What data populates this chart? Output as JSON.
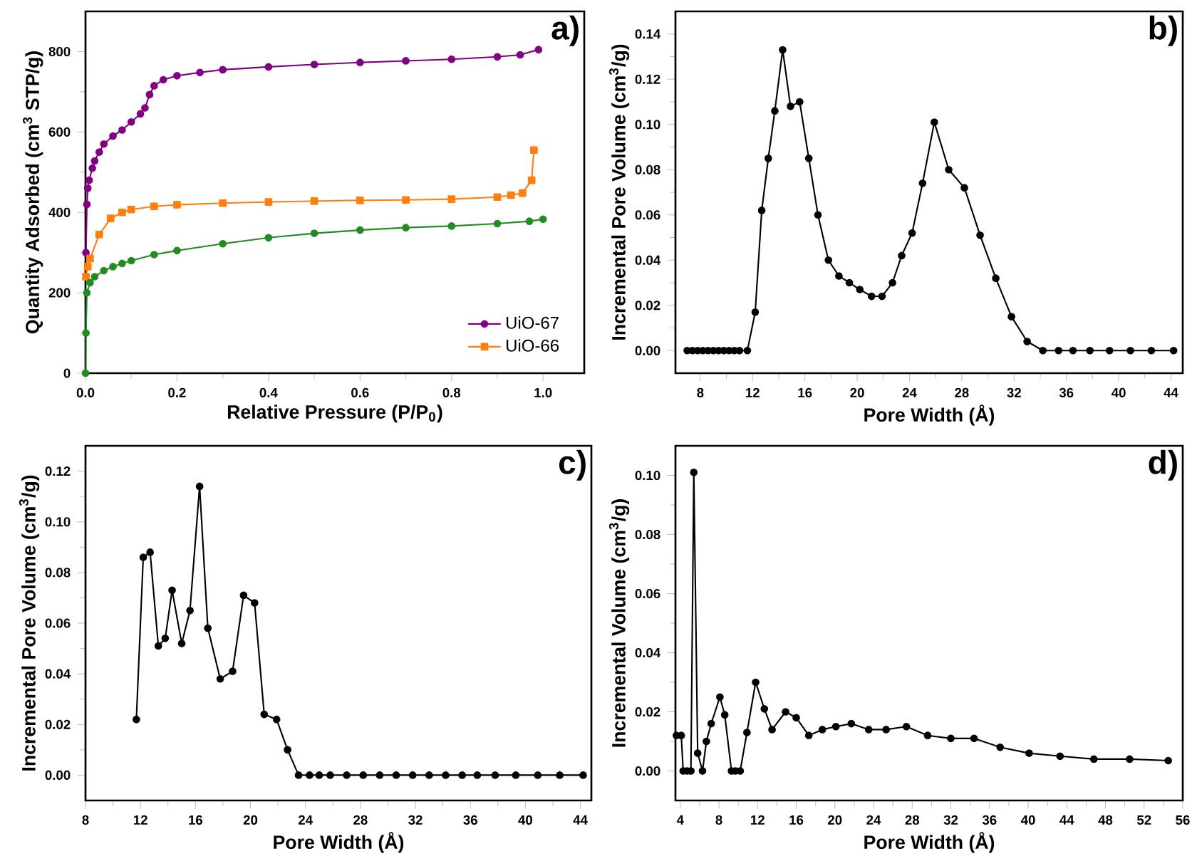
{
  "chart_data": [
    {
      "type": "line",
      "xlabel": "Relative Pressure (P/P$_{0}$)",
      "ylabel": "Quantity Adsorbed (cm$^{3}$ STP/g)",
      "annotations": [
        "a)"
      ],
      "xlim": [
        0,
        1.09
      ],
      "ylim": [
        0,
        900
      ],
      "xticks": [
        {
          "value": 0,
          "label": "0.0"
        },
        {
          "value": 0.2,
          "label": "0.2"
        },
        {
          "value": 0.4,
          "label": "0.4"
        },
        {
          "value": 0.6,
          "label": "0.6"
        },
        {
          "value": 0.8,
          "label": "0.8"
        },
        {
          "value": 1,
          "label": "1.0"
        }
      ],
      "yticks": [
        0,
        200,
        400,
        600,
        800
      ],
      "legend": "bottom right",
      "line_style": "solid",
      "series": [
        {
          "name": "UiO-67",
          "color": "#800080",
          "marker": "circle",
          "x": [
            0.001,
            0.003,
            0.005,
            0.008,
            0.015,
            0.02,
            0.03,
            0.04,
            0.06,
            0.08,
            0.1,
            0.12,
            0.13,
            0.14,
            0.15,
            0.17,
            0.2,
            0.25,
            0.3,
            0.4,
            0.5,
            0.6,
            0.7,
            0.8,
            0.9,
            0.95,
            0.99
          ],
          "values": [
            300,
            420,
            460,
            480,
            510,
            528,
            550,
            570,
            590,
            605,
            625,
            645,
            660,
            693,
            715,
            730,
            740,
            748,
            755,
            762,
            768,
            773,
            777,
            781,
            787,
            792,
            805
          ]
        },
        {
          "name": "UiO-66",
          "color": "#ff7f0e",
          "marker": "square",
          "x": [
            0.001,
            0.005,
            0.01,
            0.03,
            0.055,
            0.08,
            0.1,
            0.15,
            0.2,
            0.3,
            0.4,
            0.5,
            0.6,
            0.7,
            0.8,
            0.9,
            0.93,
            0.955,
            0.975,
            0.98
          ],
          "values": [
            240,
            265,
            285,
            345,
            385,
            400,
            407,
            415,
            419,
            423,
            426,
            428,
            430,
            431,
            433,
            438,
            443,
            448,
            480,
            555
          ]
        },
        {
          "color": "#228b22",
          "marker": "circle",
          "x": [
            0,
            0.001,
            0.003,
            0.01,
            0.02,
            0.04,
            0.06,
            0.08,
            0.1,
            0.15,
            0.2,
            0.3,
            0.4,
            0.5,
            0.6,
            0.7,
            0.8,
            0.9,
            0.97,
            1.0
          ],
          "values": [
            0,
            100,
            200,
            225,
            240,
            255,
            265,
            273,
            280,
            295,
            305,
            322,
            337,
            348,
            356,
            362,
            366,
            372,
            378,
            383
          ]
        }
      ]
    },
    {
      "type": "line",
      "xlabel": "Pore Width (Å)",
      "ylabel": "Incremental Pore Volume (cm$^{3}$/g)",
      "annotations": [
        "b)"
      ],
      "xlim": [
        6.1,
        44.9
      ],
      "ylim": [
        -0.01,
        0.15
      ],
      "xticks": [
        8,
        12,
        16,
        20,
        24,
        28,
        32,
        36,
        40,
        44
      ],
      "yticks": [
        {
          "value": 0,
          "label": "0.00"
        },
        {
          "value": 0.02,
          "label": "0.02"
        },
        {
          "value": 0.04,
          "label": "0.04"
        },
        {
          "value": 0.06,
          "label": "0.06"
        },
        {
          "value": 0.08,
          "label": "0.08"
        },
        {
          "value": 0.1,
          "label": "0.10"
        },
        {
          "value": 0.12,
          "label": "0.12"
        },
        {
          "value": 0.14,
          "label": "0.14"
        }
      ],
      "marker": "circle",
      "line_style": "solid",
      "series": [
        {
          "color": "#000000",
          "x": [
            7.0,
            7.4,
            7.8,
            8.2,
            8.6,
            9.0,
            9.4,
            9.8,
            10.2,
            10.6,
            11.0,
            11.6,
            12.2,
            12.7,
            13.2,
            13.7,
            14.3,
            14.9,
            15.6,
            16.3,
            17.0,
            17.8,
            18.6,
            19.4,
            20.2,
            21.1,
            21.9,
            22.7,
            23.4,
            24.2,
            25.0,
            25.9,
            27.0,
            28.2,
            29.4,
            30.6,
            31.8,
            33.0,
            34.2,
            35.4,
            36.5,
            37.8,
            39.3,
            40.9,
            42.5,
            44.2
          ],
          "values": [
            0,
            0,
            0,
            0,
            0,
            0,
            0,
            0,
            0,
            0,
            0,
            0,
            0.017,
            0.062,
            0.085,
            0.106,
            0.133,
            0.108,
            0.11,
            0.085,
            0.06,
            0.04,
            0.033,
            0.03,
            0.027,
            0.024,
            0.024,
            0.03,
            0.042,
            0.052,
            0.074,
            0.101,
            0.08,
            0.072,
            0.051,
            0.032,
            0.015,
            0.004,
            0,
            0,
            0,
            0,
            0,
            0,
            0,
            0
          ]
        }
      ]
    },
    {
      "type": "line",
      "xlabel": "Pore Width (Å)",
      "ylabel": "Incremental Pore Volume (cm$^{3}$/g)",
      "annotations": [
        "c)"
      ],
      "xlim": [
        8,
        44.8
      ],
      "ylim": [
        -0.01,
        0.13
      ],
      "xticks": [
        8,
        12,
        16,
        20,
        24,
        28,
        32,
        36,
        40,
        44
      ],
      "yticks": [
        {
          "value": 0,
          "label": "0.00"
        },
        {
          "value": 0.02,
          "label": "0.02"
        },
        {
          "value": 0.04,
          "label": "0.04"
        },
        {
          "value": 0.06,
          "label": "0.06"
        },
        {
          "value": 0.08,
          "label": "0.08"
        },
        {
          "value": 0.1,
          "label": "0.10"
        },
        {
          "value": 0.12,
          "label": "0.12"
        }
      ],
      "marker": "circle",
      "line_style": "solid",
      "series": [
        {
          "color": "#000000",
          "x": [
            11.7,
            12.2,
            12.7,
            13.3,
            13.8,
            14.3,
            15.0,
            15.6,
            16.3,
            16.9,
            17.8,
            18.7,
            19.5,
            20.3,
            21.0,
            21.9,
            22.7,
            23.5,
            24.3,
            25.0,
            25.8,
            27.0,
            28.2,
            29.4,
            30.6,
            31.8,
            33.0,
            34.2,
            35.4,
            36.5,
            37.8,
            39.3,
            40.9,
            42.5,
            44.2
          ],
          "values": [
            0.022,
            0.086,
            0.088,
            0.051,
            0.054,
            0.073,
            0.052,
            0.065,
            0.114,
            0.058,
            0.038,
            0.041,
            0.071,
            0.068,
            0.024,
            0.022,
            0.01,
            0,
            0,
            0,
            0,
            0,
            0,
            0,
            0,
            0,
            0,
            0,
            0,
            0,
            0,
            0,
            0,
            0,
            0
          ]
        }
      ]
    },
    {
      "type": "line",
      "xlabel": "Pore Width (Å)",
      "ylabel": "Incremental Volume (cm$^{3}$/g)",
      "annotations": [
        "d)"
      ],
      "xlim": [
        3.5,
        56
      ],
      "ylim": [
        -0.01,
        0.11
      ],
      "xticks": [
        4,
        8,
        12,
        16,
        20,
        24,
        28,
        32,
        36,
        40,
        44,
        48,
        52,
        56
      ],
      "yticks": [
        {
          "value": 0,
          "label": "0.00"
        },
        {
          "value": 0.02,
          "label": "0.02"
        },
        {
          "value": 0.04,
          "label": "0.04"
        },
        {
          "value": 0.06,
          "label": "0.06"
        },
        {
          "value": 0.08,
          "label": "0.08"
        },
        {
          "value": 0.1,
          "label": "0.10"
        }
      ],
      "marker": "circle",
      "line_style": "solid",
      "series": [
        {
          "color": "#000000",
          "x": [
            3.6,
            4.1,
            4.3,
            4.7,
            5.1,
            5.4,
            5.8,
            6.3,
            6.7,
            7.2,
            8.1,
            8.6,
            9.3,
            9.7,
            10.2,
            10.9,
            11.8,
            12.7,
            13.5,
            14.9,
            16.0,
            17.3,
            18.7,
            20.1,
            21.7,
            23.5,
            25.3,
            27.4,
            29.6,
            32.0,
            34.4,
            37.1,
            40.1,
            43.3,
            46.8,
            50.5,
            54.5
          ],
          "values": [
            0.012,
            0.012,
            0,
            0,
            0,
            0.101,
            0.006,
            0,
            0.01,
            0.016,
            0.025,
            0.019,
            0,
            0,
            0,
            0.013,
            0.03,
            0.021,
            0.014,
            0.02,
            0.018,
            0.012,
            0.014,
            0.015,
            0.016,
            0.014,
            0.014,
            0.015,
            0.012,
            0.011,
            0.011,
            0.008,
            0.006,
            0.005,
            0.004,
            0.004,
            0.0035
          ]
        }
      ]
    }
  ]
}
